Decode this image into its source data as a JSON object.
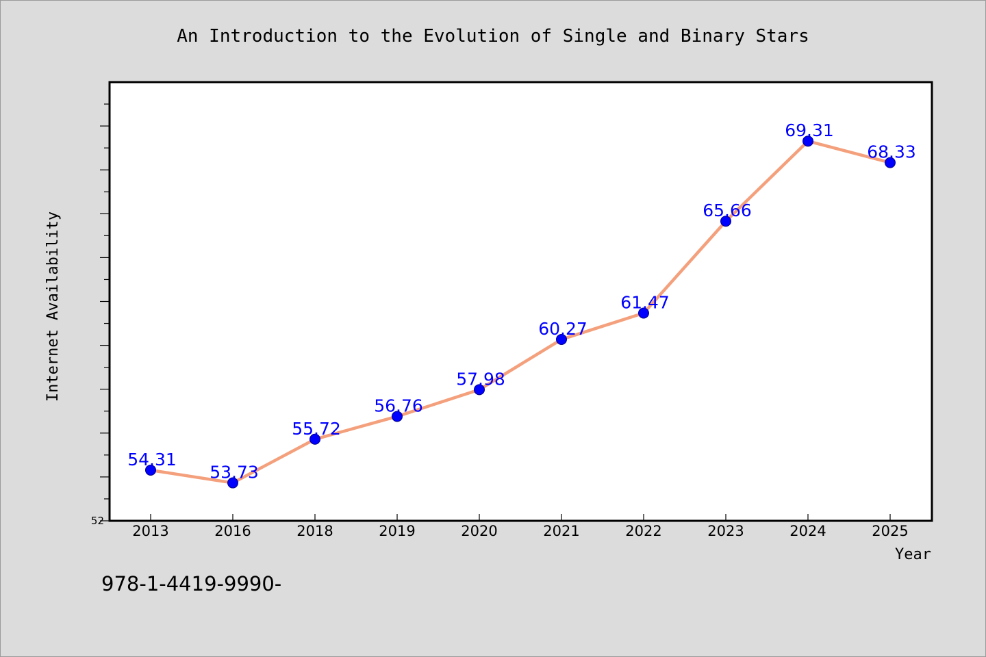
{
  "chart_data": {
    "type": "line",
    "title": "An Introduction to the Evolution of Single and Binary Stars",
    "xlabel": "Year",
    "ylabel": "Internet Availability",
    "categories": [
      "2013",
      "2016",
      "2018",
      "2019",
      "2020",
      "2021",
      "2022",
      "2023",
      "2024",
      "2025"
    ],
    "series": [
      {
        "values": [
          54.31,
          53.73,
          55.72,
          56.76,
          57.98,
          60.27,
          61.47,
          65.66,
          69.31,
          68.33
        ],
        "labels": [
          "54.31",
          "53.73",
          "55.72",
          "56.76",
          "57.98",
          "60.27",
          "61.47",
          "65.66",
          "69.31",
          "68.33"
        ]
      }
    ],
    "ylim": [
      52,
      72
    ],
    "ytick_labels": [
      "52"
    ],
    "grid": false,
    "legend": "none",
    "colors": {
      "line": "#f4a07c",
      "marker": "#0000ff",
      "data_label": "#0000ff",
      "plot_background": "#ffffff",
      "page_background": "#dcdcdc"
    }
  },
  "footer": {
    "isbn": "978-1-4419-9990-"
  }
}
